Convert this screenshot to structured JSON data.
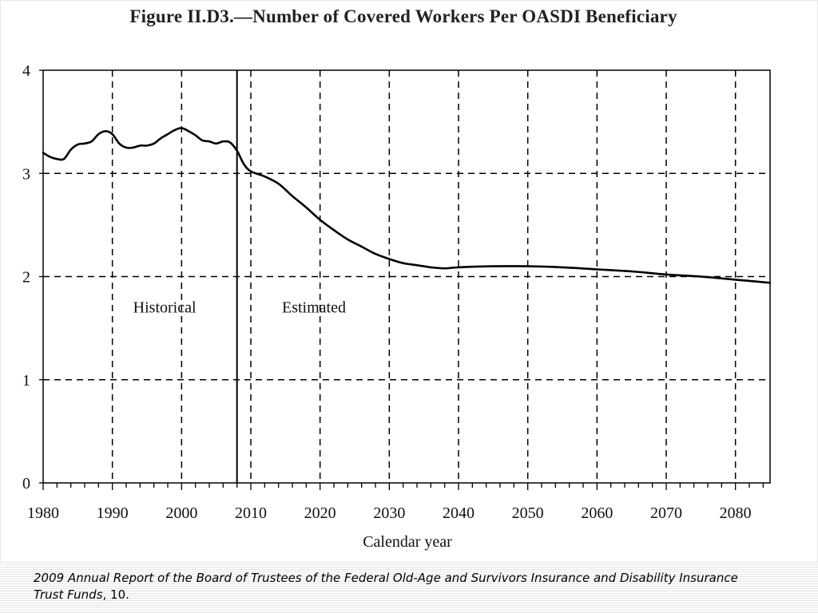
{
  "page": {
    "title": "Figure II.D3.—Number of Covered Workers Per OASDI Beneficiary",
    "citation_italic": "2009 Annual Report of the Board of Trustees of the Federal Old-Age and Survivors Insurance and Disability Insurance Trust Funds",
    "citation_suffix": ", 10."
  },
  "chart_data": {
    "type": "line",
    "title": "Figure II.D3.—Number of Covered Workers Per OASDI Beneficiary",
    "xlabel": "Calendar year",
    "ylabel": "",
    "xlim": [
      1980,
      2085
    ],
    "ylim": [
      0,
      4
    ],
    "x_ticks": [
      1980,
      1990,
      2000,
      2010,
      2020,
      2030,
      2040,
      2050,
      2060,
      2070,
      2080
    ],
    "y_ticks": [
      0,
      1,
      2,
      3,
      4
    ],
    "grid": true,
    "grid_style": "dashed",
    "divider_year": 2008,
    "annotations": [
      {
        "text": "Historical",
        "x": 1993,
        "y": 1.65
      },
      {
        "text": "Estimated",
        "x": 2014.5,
        "y": 1.65
      }
    ],
    "series": [
      {
        "name": "",
        "color": "#000000",
        "x": [
          1980,
          1981,
          1982,
          1983,
          1984,
          1985,
          1986,
          1987,
          1988,
          1989,
          1990,
          1991,
          1992,
          1993,
          1994,
          1995,
          1996,
          1997,
          1998,
          1999,
          2000,
          2001,
          2002,
          2003,
          2004,
          2005,
          2006,
          2007,
          2008,
          2009,
          2010,
          2012,
          2014,
          2016,
          2018,
          2020,
          2022,
          2024,
          2026,
          2028,
          2030,
          2032,
          2034,
          2036,
          2038,
          2040,
          2045,
          2050,
          2055,
          2060,
          2065,
          2070,
          2075,
          2080,
          2085
        ],
        "y": [
          3.2,
          3.16,
          3.14,
          3.14,
          3.23,
          3.28,
          3.29,
          3.31,
          3.38,
          3.41,
          3.38,
          3.29,
          3.25,
          3.25,
          3.27,
          3.27,
          3.29,
          3.34,
          3.38,
          3.42,
          3.44,
          3.41,
          3.37,
          3.32,
          3.31,
          3.29,
          3.31,
          3.3,
          3.22,
          3.09,
          3.02,
          2.97,
          2.9,
          2.78,
          2.67,
          2.55,
          2.45,
          2.36,
          2.29,
          2.22,
          2.17,
          2.13,
          2.11,
          2.09,
          2.08,
          2.09,
          2.1,
          2.1,
          2.09,
          2.07,
          2.05,
          2.02,
          2.0,
          1.97,
          1.94
        ]
      }
    ]
  }
}
